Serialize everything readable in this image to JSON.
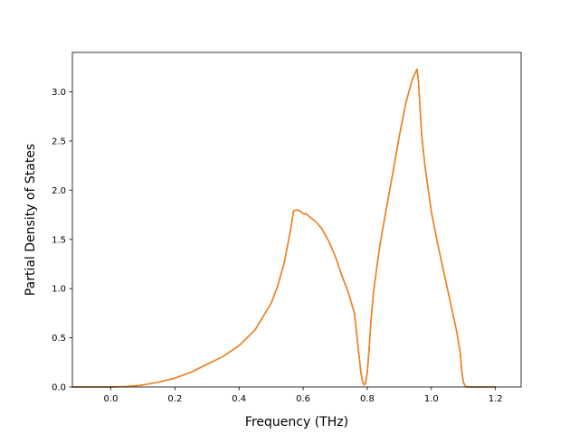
{
  "chart_data": {
    "type": "line",
    "title": "",
    "xlabel": "Frequency (THz)",
    "ylabel": "Partial Density of States",
    "xlim": [
      -0.12,
      1.28
    ],
    "ylim": [
      0.0,
      3.4
    ],
    "xticks": [
      0.0,
      0.2,
      0.4,
      0.6,
      0.8,
      1.0,
      1.2
    ],
    "xtick_labels": [
      "0.0",
      "0.2",
      "0.4",
      "0.6",
      "0.8",
      "1.0",
      "1.2"
    ],
    "yticks": [
      0.0,
      0.5,
      1.0,
      1.5,
      2.0,
      2.5,
      3.0
    ],
    "ytick_labels": [
      "0.0",
      "0.5",
      "1.0",
      "1.5",
      "2.0",
      "2.5",
      "3.0"
    ],
    "grid": false,
    "legend": false,
    "series": [
      {
        "color": "#1f77b4",
        "x": [
          -0.12,
          0.0,
          0.05,
          0.1,
          0.15,
          0.2,
          0.25,
          0.3,
          0.35,
          0.4,
          0.45,
          0.5,
          0.52,
          0.54,
          0.56,
          0.57,
          0.58,
          0.59,
          0.6,
          0.61,
          0.62,
          0.64,
          0.66,
          0.68,
          0.7,
          0.72,
          0.74,
          0.76,
          0.77,
          0.775,
          0.78,
          0.785,
          0.79,
          0.795,
          0.8,
          0.805,
          0.81,
          0.815,
          0.82,
          0.83,
          0.84,
          0.86,
          0.88,
          0.9,
          0.92,
          0.94,
          0.955,
          0.96,
          0.97,
          0.98,
          1.0,
          1.02,
          1.04,
          1.06,
          1.08,
          1.09,
          1.095,
          1.1,
          1.105,
          1.11,
          1.15,
          1.2
        ],
        "y": [
          0.0,
          0.0,
          0.005,
          0.02,
          0.05,
          0.09,
          0.15,
          0.23,
          0.31,
          0.42,
          0.58,
          0.85,
          1.02,
          1.25,
          1.58,
          1.79,
          1.8,
          1.79,
          1.76,
          1.76,
          1.73,
          1.68,
          1.6,
          1.48,
          1.33,
          1.14,
          0.97,
          0.75,
          0.45,
          0.3,
          0.15,
          0.06,
          0.02,
          0.04,
          0.15,
          0.35,
          0.6,
          0.8,
          0.97,
          1.22,
          1.45,
          1.82,
          2.18,
          2.55,
          2.88,
          3.12,
          3.23,
          3.1,
          2.55,
          2.25,
          1.78,
          1.45,
          1.15,
          0.85,
          0.55,
          0.35,
          0.15,
          0.05,
          0.01,
          0.0,
          0.0,
          0.0
        ]
      },
      {
        "color": "#ff7f0e",
        "x": [
          -0.12,
          0.0,
          0.05,
          0.1,
          0.15,
          0.2,
          0.25,
          0.3,
          0.35,
          0.4,
          0.45,
          0.5,
          0.52,
          0.54,
          0.56,
          0.57,
          0.58,
          0.59,
          0.6,
          0.61,
          0.62,
          0.64,
          0.66,
          0.68,
          0.7,
          0.72,
          0.74,
          0.76,
          0.77,
          0.775,
          0.78,
          0.785,
          0.79,
          0.795,
          0.8,
          0.805,
          0.81,
          0.815,
          0.82,
          0.83,
          0.84,
          0.86,
          0.88,
          0.9,
          0.92,
          0.94,
          0.955,
          0.96,
          0.97,
          0.98,
          1.0,
          1.02,
          1.04,
          1.06,
          1.08,
          1.09,
          1.095,
          1.1,
          1.105,
          1.11,
          1.15,
          1.2
        ],
        "y": [
          0.0,
          0.0,
          0.005,
          0.02,
          0.05,
          0.09,
          0.15,
          0.23,
          0.31,
          0.42,
          0.58,
          0.85,
          1.02,
          1.25,
          1.58,
          1.79,
          1.8,
          1.79,
          1.76,
          1.76,
          1.73,
          1.68,
          1.6,
          1.48,
          1.33,
          1.14,
          0.97,
          0.75,
          0.45,
          0.3,
          0.15,
          0.06,
          0.02,
          0.04,
          0.15,
          0.35,
          0.6,
          0.8,
          0.97,
          1.22,
          1.45,
          1.82,
          2.18,
          2.55,
          2.88,
          3.12,
          3.23,
          3.1,
          2.55,
          2.25,
          1.78,
          1.45,
          1.15,
          0.85,
          0.55,
          0.35,
          0.15,
          0.05,
          0.01,
          0.0,
          0.0,
          0.0
        ]
      }
    ]
  }
}
